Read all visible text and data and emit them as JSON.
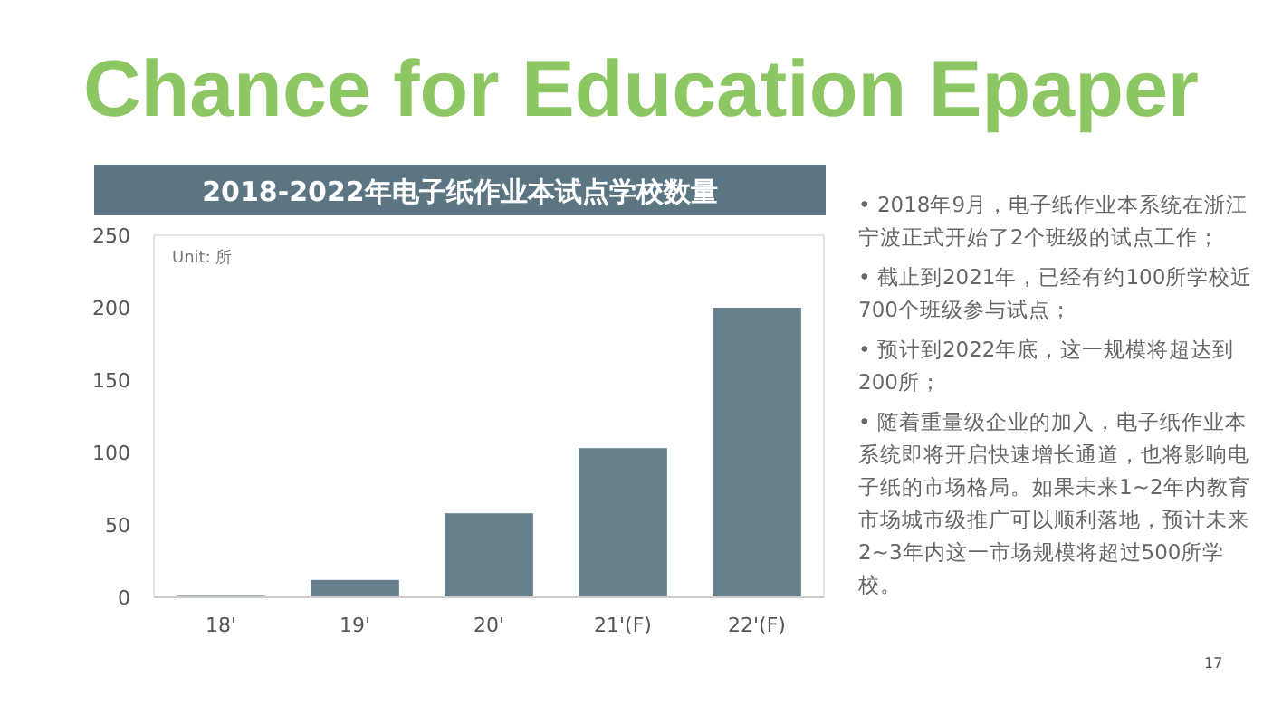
{
  "chart_data": {
    "type": "bar",
    "title": "Chance for Education Epaper",
    "subtitle": "2018-2022年电子纸作业本试点学校数量",
    "categories": [
      "18'",
      "19'",
      "20'",
      "21'(F)",
      "22'(F)"
    ],
    "values": [
      1,
      12,
      58,
      103,
      200
    ],
    "color": "#667f8b",
    "ylim": [
      0,
      250
    ],
    "yticks": [
      0,
      50,
      100,
      150,
      200,
      250
    ],
    "grid": false,
    "annotations": [
      "Unit: 所",
      "• 2018年9月，电子纸作业本系统在浙江宁波正式开始了2个班级的试点工作；",
      "• 截止到2021年，已经有约100所学校近700个班级参与试点；",
      "• 预计到2022年底，这一规模将超达到200所；",
      "• 随着重量级企业的加入，电子纸作业本系统即将开启快速增长通道，也将影响电子纸的市场格局。如果未来1~2年内教育市场城市级推广可以顺利落地，预计未来2~3年内这一市场规模将超过500所学校。",
      "17"
    ]
  }
}
